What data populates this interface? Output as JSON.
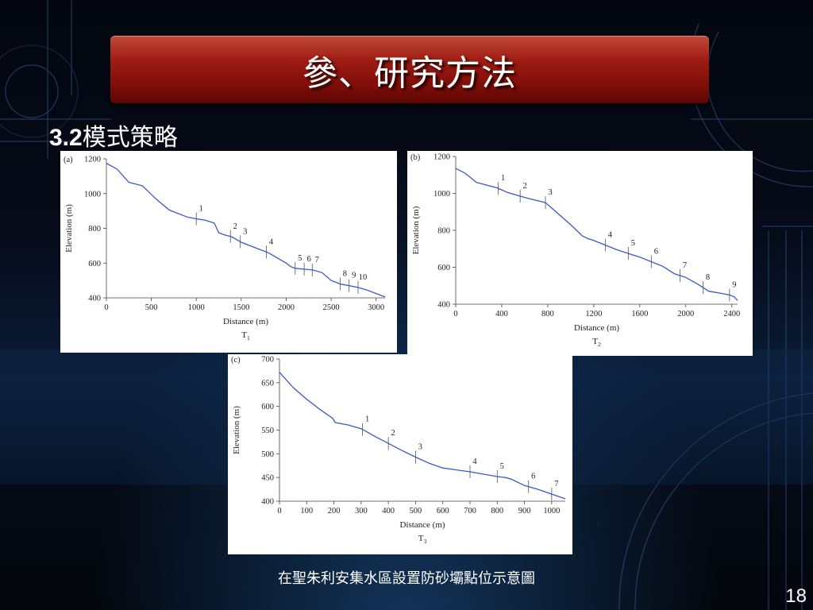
{
  "slide": {
    "title": "參、研究方法",
    "subtitle_num": "3.2",
    "subtitle_text": "模式策略",
    "caption": "在聖朱利安集水區設置防砂壩點位示意圖",
    "page_number": "18"
  },
  "colors": {
    "title_bar": "#9f1d14",
    "profile_line": "#3d57c9",
    "background": "#050b18"
  },
  "chart_data": [
    {
      "type": "line",
      "panel": "(a)",
      "title": "T1",
      "xlabel": "Distance (m)",
      "ylabel": "Elevation (m)",
      "xlim": [
        0,
        3100
      ],
      "ylim": [
        400,
        1200
      ],
      "xticks": [
        0,
        500,
        1000,
        1500,
        2000,
        2500,
        3000
      ],
      "yticks": [
        400,
        600,
        800,
        1000,
        1200
      ],
      "grid": false,
      "legend": "none",
      "series": [
        {
          "x": [
            0,
            120,
            250,
            400,
            550,
            700,
            900,
            1000,
            1100,
            1200,
            1250,
            1300,
            1400,
            1500,
            1650,
            1800,
            1900,
            2000,
            2050,
            2100,
            2200,
            2300,
            2400,
            2500,
            2600,
            2700,
            2800,
            2900,
            3000,
            3100
          ],
          "y": [
            1175,
            1140,
            1065,
            1045,
            970,
            905,
            865,
            855,
            847,
            830,
            775,
            765,
            750,
            720,
            690,
            660,
            630,
            600,
            580,
            570,
            565,
            560,
            545,
            500,
            480,
            470,
            460,
            445,
            425,
            405
          ]
        }
      ],
      "annotations": [
        {
          "label": "1",
          "x": 1000
        },
        {
          "label": "2",
          "x": 1380
        },
        {
          "label": "3",
          "x": 1490
        },
        {
          "label": "4",
          "x": 1780
        },
        {
          "label": "5",
          "x": 2100
        },
        {
          "label": "6",
          "x": 2200
        },
        {
          "label": "7",
          "x": 2290
        },
        {
          "label": "8",
          "x": 2600
        },
        {
          "label": "9",
          "x": 2700
        },
        {
          "label": "10",
          "x": 2800
        }
      ]
    },
    {
      "type": "line",
      "panel": "(b)",
      "title": "T2",
      "xlabel": "Distance (m)",
      "ylabel": "Elevation (m)",
      "xlim": [
        0,
        2450
      ],
      "ylim": [
        400,
        1200
      ],
      "xticks": [
        0,
        400,
        800,
        1200,
        1600,
        2000,
        2400
      ],
      "yticks": [
        400,
        600,
        800,
        1000,
        1200
      ],
      "grid": false,
      "legend": "none",
      "series": [
        {
          "x": [
            0,
            80,
            180,
            300,
            360,
            450,
            560,
            650,
            780,
            900,
            1000,
            1100,
            1150,
            1200,
            1300,
            1400,
            1500,
            1600,
            1700,
            1800,
            1900,
            1950,
            2000,
            2100,
            2150,
            2200,
            2300,
            2380,
            2420,
            2450
          ],
          "y": [
            1135,
            1110,
            1060,
            1040,
            1030,
            1005,
            985,
            970,
            950,
            885,
            830,
            770,
            755,
            745,
            720,
            695,
            675,
            655,
            630,
            605,
            565,
            555,
            545,
            510,
            490,
            470,
            460,
            450,
            440,
            420
          ]
        }
      ],
      "annotations": [
        {
          "label": "1",
          "x": 370
        },
        {
          "label": "2",
          "x": 560
        },
        {
          "label": "3",
          "x": 780
        },
        {
          "label": "4",
          "x": 1300
        },
        {
          "label": "5",
          "x": 1500
        },
        {
          "label": "6",
          "x": 1700
        },
        {
          "label": "7",
          "x": 1950
        },
        {
          "label": "8",
          "x": 2150
        },
        {
          "label": "9",
          "x": 2380
        }
      ]
    },
    {
      "type": "line",
      "panel": "(c)",
      "title": "T3",
      "xlabel": "Distance (m)",
      "ylabel": "Elevation (m)",
      "xlim": [
        0,
        1050
      ],
      "ylim": [
        400,
        700
      ],
      "xticks": [
        0,
        100,
        200,
        300,
        400,
        500,
        600,
        700,
        800,
        900,
        1000
      ],
      "yticks": [
        400,
        450,
        500,
        550,
        600,
        650,
        700
      ],
      "grid": false,
      "legend": "none",
      "series": [
        {
          "x": [
            0,
            50,
            100,
            150,
            195,
            205,
            250,
            300,
            350,
            400,
            450,
            500,
            550,
            600,
            650,
            700,
            750,
            800,
            830,
            850,
            900,
            950,
            1000,
            1050
          ],
          "y": [
            672,
            640,
            615,
            593,
            575,
            566,
            561,
            553,
            537,
            522,
            507,
            493,
            480,
            470,
            466,
            462,
            457,
            452,
            450,
            447,
            433,
            425,
            415,
            405
          ]
        }
      ],
      "annotations": [
        {
          "label": "1",
          "x": 305
        },
        {
          "label": "2",
          "x": 400
        },
        {
          "label": "3",
          "x": 500
        },
        {
          "label": "4",
          "x": 700
        },
        {
          "label": "5",
          "x": 800
        },
        {
          "label": "6",
          "x": 915
        },
        {
          "label": "7",
          "x": 1000
        }
      ]
    }
  ]
}
